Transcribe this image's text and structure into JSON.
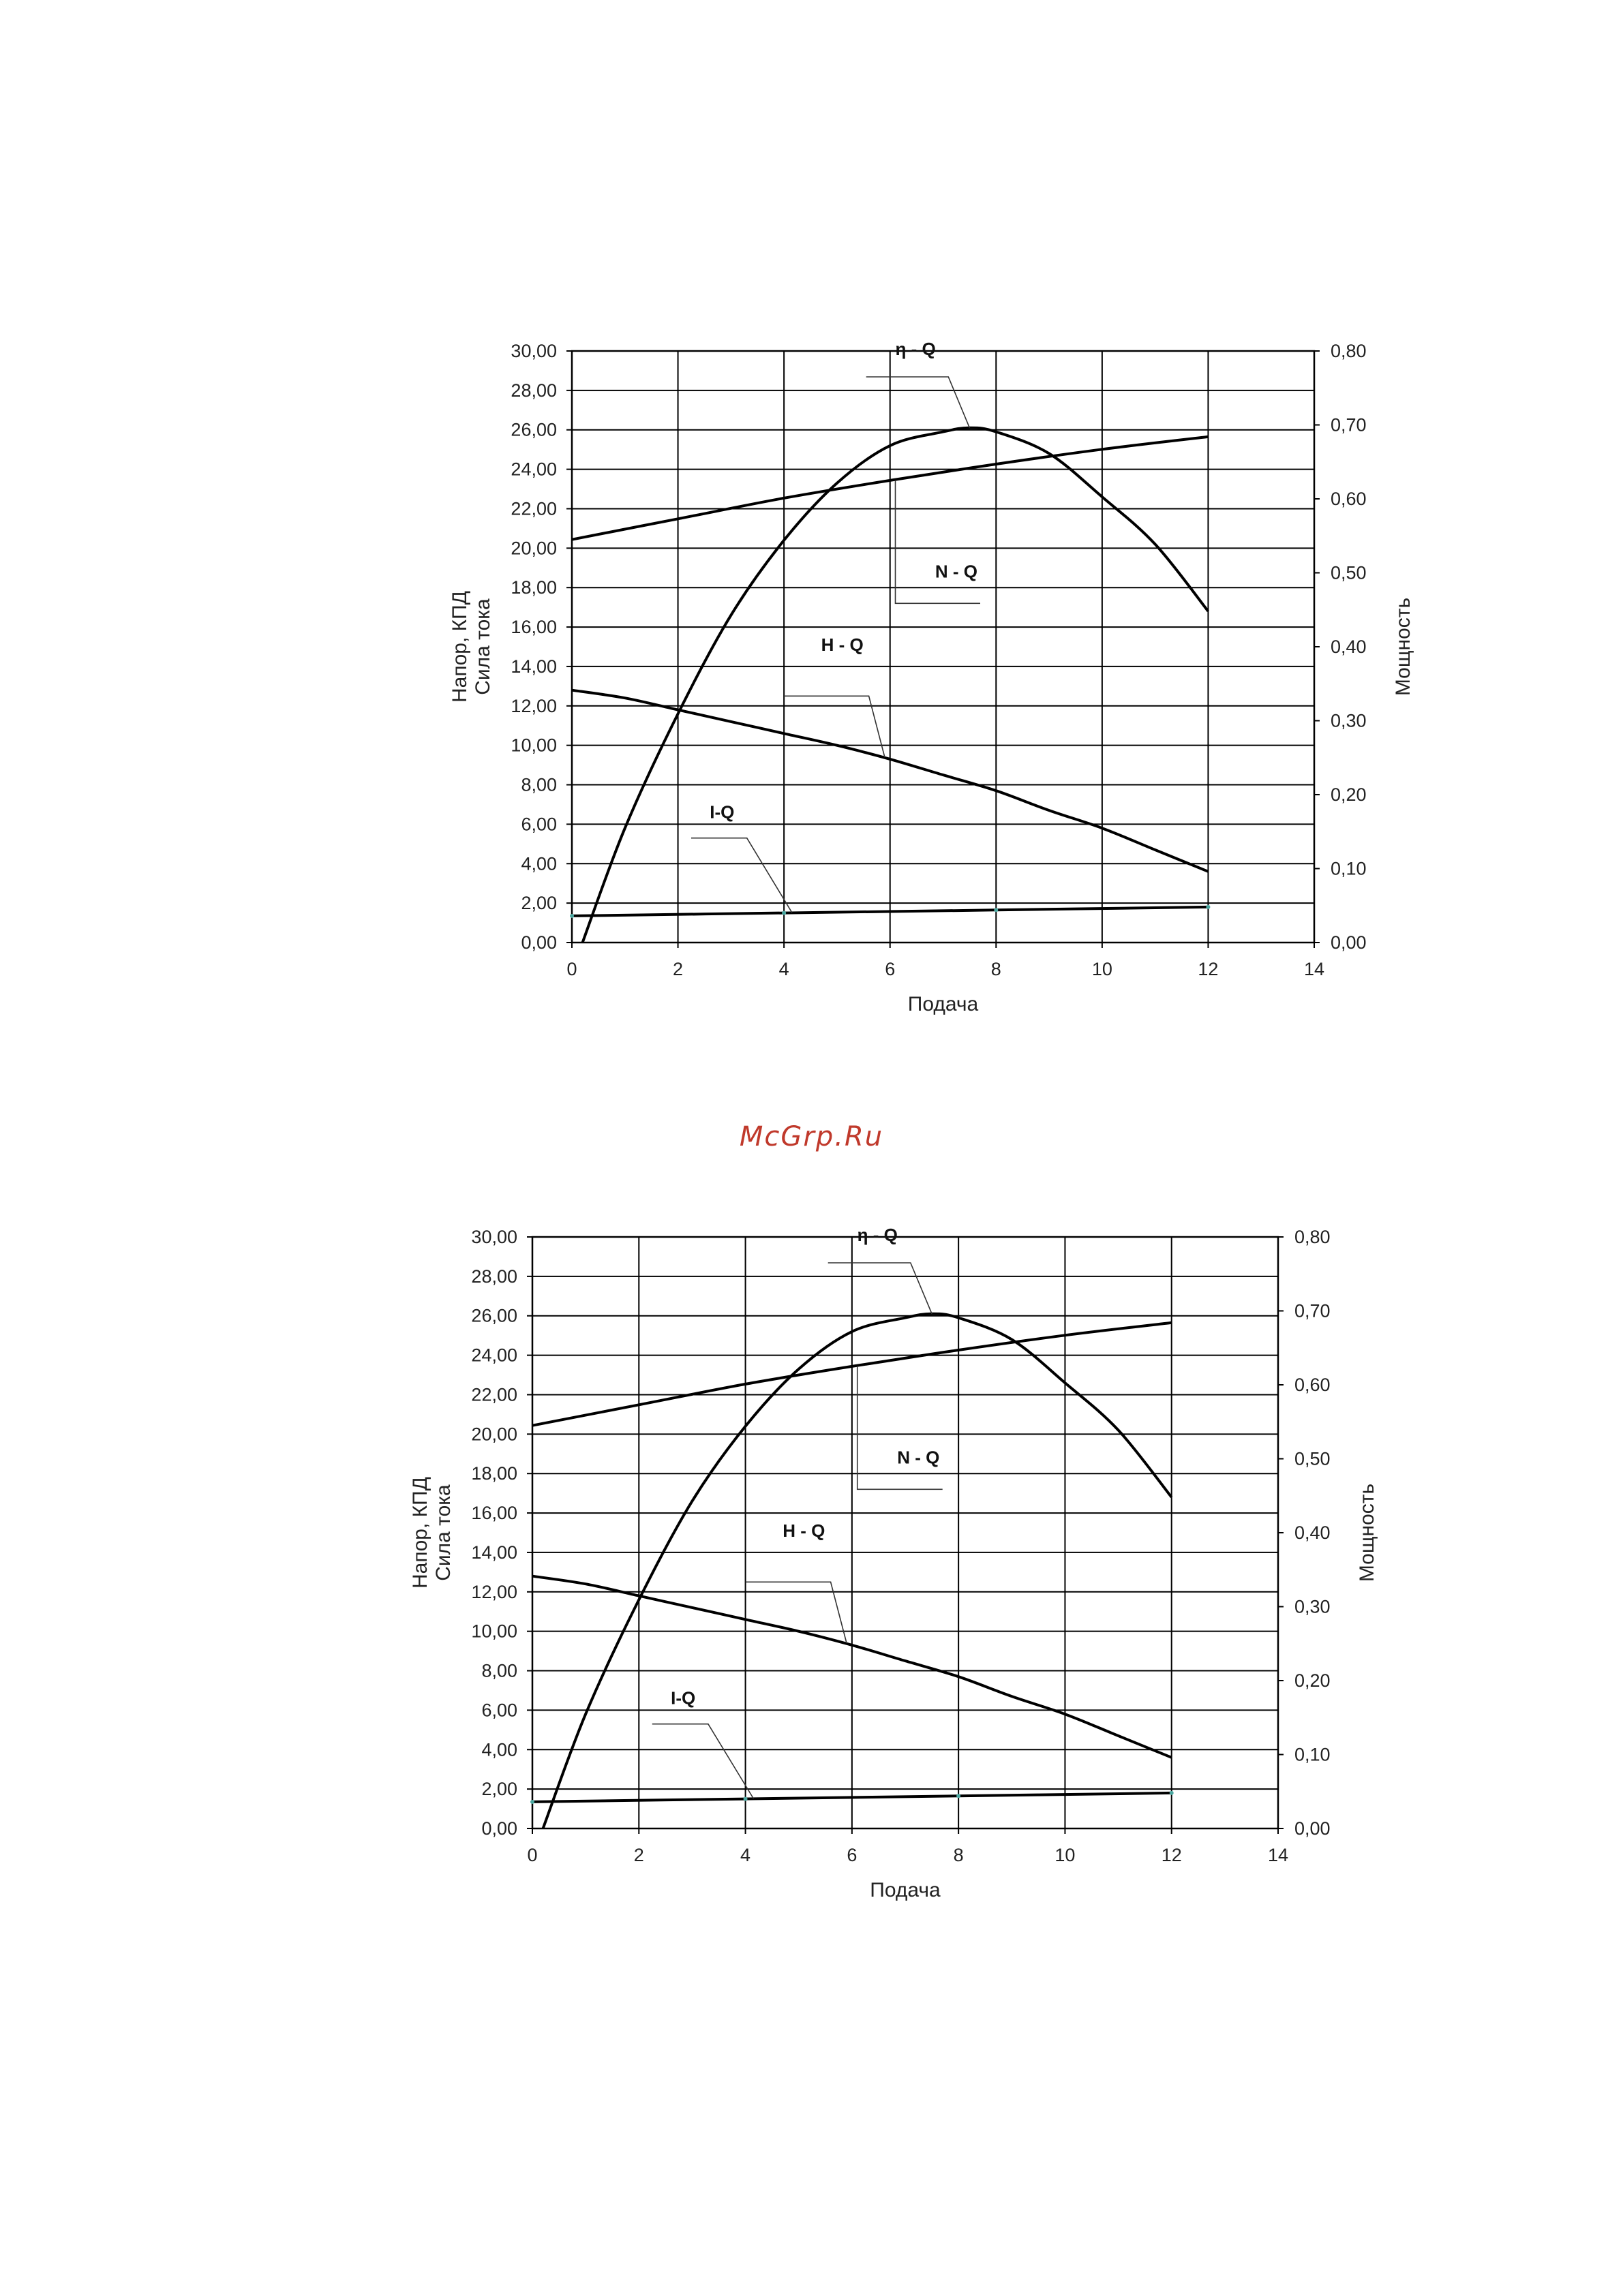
{
  "watermark": "McGrp.Ru",
  "chart_data": [
    {
      "type": "line",
      "title": "",
      "xlabel": "Подача",
      "ylabel_lines": [
        "Напор, КПД",
        "Сила тока"
      ],
      "y2label": "Мощность",
      "xlim": [
        0,
        14
      ],
      "ylim": [
        0,
        30
      ],
      "y2lim": [
        0,
        0.8
      ],
      "grid": true,
      "x_ticks": [
        "0",
        "2",
        "4",
        "6",
        "8",
        "10",
        "12",
        "14"
      ],
      "y_ticks": [
        "0,00",
        "2,00",
        "4,00",
        "6,00",
        "8,00",
        "10,00",
        "12,00",
        "14,00",
        "16,00",
        "18,00",
        "20,00",
        "22,00",
        "24,00",
        "26,00",
        "28,00",
        "30,00"
      ],
      "y2_ticks": [
        "0,00",
        "0,10",
        "0,20",
        "0,30",
        "0,40",
        "0,50",
        "0,60",
        "0,70",
        "0,80"
      ],
      "series": [
        {
          "name": "η - Q",
          "axis": "left",
          "x": [
            0.2,
            1,
            2,
            3,
            4,
            5,
            6,
            7,
            7.5,
            8,
            9,
            10,
            11,
            12
          ],
          "y": [
            0,
            5.8,
            11.6,
            16.6,
            20.4,
            23.3,
            25.2,
            25.9,
            26.1,
            25.9,
            24.8,
            22.6,
            20.2,
            16.8
          ]
        },
        {
          "name": "N - Q",
          "axis": "right",
          "x": [
            0,
            2,
            4,
            6,
            8,
            10,
            12
          ],
          "y": [
            0.545,
            0.573,
            0.601,
            0.625,
            0.647,
            0.667,
            0.684
          ]
        },
        {
          "name": "H - Q",
          "axis": "left",
          "x": [
            0,
            1,
            2,
            3,
            4,
            5,
            6,
            7,
            8,
            9,
            10,
            11,
            12
          ],
          "y": [
            12.8,
            12.4,
            11.8,
            11.2,
            10.6,
            10.0,
            9.3,
            8.5,
            7.7,
            6.7,
            5.8,
            4.7,
            3.6
          ]
        },
        {
          "name": "I-Q",
          "axis": "left",
          "x": [
            0,
            4,
            8,
            12
          ],
          "y": [
            1.35,
            1.5,
            1.65,
            1.8
          ]
        }
      ],
      "annotations": [
        {
          "text": "η - Q",
          "series": "η - Q"
        },
        {
          "text": "N - Q",
          "series": "N - Q"
        },
        {
          "text": "H - Q",
          "series": "H - Q"
        },
        {
          "text": "I-Q",
          "series": "I-Q"
        }
      ]
    },
    {
      "type": "line",
      "title": "",
      "xlabel": "Подача",
      "ylabel_lines": [
        "Напор, КПД",
        "Сила тока"
      ],
      "y2label": "Мощность",
      "xlim": [
        0,
        14
      ],
      "ylim": [
        0,
        30
      ],
      "y2lim": [
        0,
        0.8
      ],
      "grid": true,
      "x_ticks": [
        "0",
        "2",
        "4",
        "6",
        "8",
        "10",
        "12",
        "14"
      ],
      "y_ticks": [
        "0,00",
        "2,00",
        "4,00",
        "6,00",
        "8,00",
        "10,00",
        "12,00",
        "14,00",
        "16,00",
        "18,00",
        "20,00",
        "22,00",
        "24,00",
        "26,00",
        "28,00",
        "30,00"
      ],
      "y2_ticks": [
        "0,00",
        "0,10",
        "0,20",
        "0,30",
        "0,40",
        "0,50",
        "0,60",
        "0,70",
        "0,80"
      ],
      "series": [
        {
          "name": "η - Q",
          "axis": "left",
          "x": [
            0.2,
            1,
            2,
            3,
            4,
            5,
            6,
            7,
            7.5,
            8,
            9,
            10,
            11,
            12
          ],
          "y": [
            0,
            5.8,
            11.6,
            16.6,
            20.4,
            23.3,
            25.2,
            25.9,
            26.1,
            25.9,
            24.8,
            22.6,
            20.2,
            16.8
          ]
        },
        {
          "name": "N - Q",
          "axis": "right",
          "x": [
            0,
            2,
            4,
            6,
            8,
            10,
            12
          ],
          "y": [
            0.545,
            0.573,
            0.601,
            0.625,
            0.647,
            0.667,
            0.684
          ]
        },
        {
          "name": "H - Q",
          "axis": "left",
          "x": [
            0,
            1,
            2,
            3,
            4,
            5,
            6,
            7,
            8,
            9,
            10,
            11,
            12
          ],
          "y": [
            12.8,
            12.4,
            11.8,
            11.2,
            10.6,
            10.0,
            9.3,
            8.5,
            7.7,
            6.7,
            5.8,
            4.7,
            3.6
          ]
        },
        {
          "name": "I-Q",
          "axis": "left",
          "x": [
            0,
            4,
            8,
            12
          ],
          "y": [
            1.35,
            1.5,
            1.65,
            1.8
          ]
        }
      ],
      "annotations": [
        {
          "text": "η - Q",
          "series": "η - Q"
        },
        {
          "text": "N - Q",
          "series": "N - Q"
        },
        {
          "text": "H - Q",
          "series": "H - Q"
        },
        {
          "text": "I-Q",
          "series": "I-Q"
        }
      ]
    }
  ]
}
